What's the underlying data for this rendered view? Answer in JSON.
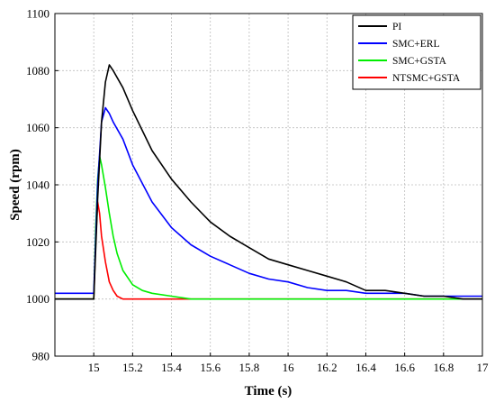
{
  "chart_data": {
    "type": "line",
    "title": "",
    "xlabel": "Time (s)",
    "ylabel": "Speed (rpm)",
    "xlim": [
      14.8,
      17.0
    ],
    "ylim": [
      980,
      1100
    ],
    "xticks": [
      "15",
      "15.2",
      "15.4",
      "15.6",
      "15.8",
      "16",
      "16.2",
      "16.4",
      "16.6",
      "16.8",
      "17"
    ],
    "yticks": [
      "980",
      "1000",
      "1020",
      "1040",
      "1060",
      "1080",
      "1100"
    ],
    "grid": true,
    "legend_position": "top-right",
    "series": [
      {
        "name": "PI",
        "color": "#000000",
        "x": [
          14.8,
          15.0,
          15.02,
          15.04,
          15.06,
          15.08,
          15.1,
          15.15,
          15.2,
          15.3,
          15.4,
          15.5,
          15.6,
          15.7,
          15.8,
          15.9,
          16.0,
          16.1,
          16.2,
          16.3,
          16.4,
          16.5,
          16.6,
          16.7,
          16.8,
          16.9,
          17.0
        ],
        "y": [
          1000,
          1000,
          1035,
          1062,
          1076,
          1082,
          1080,
          1074,
          1066,
          1052,
          1042,
          1034,
          1027,
          1022,
          1018,
          1014,
          1012,
          1010,
          1008,
          1006,
          1003,
          1003,
          1002,
          1001,
          1001,
          1000,
          1000
        ]
      },
      {
        "name": "SMC+ERL",
        "color": "#0000ff",
        "x": [
          14.8,
          15.0,
          15.02,
          15.04,
          15.06,
          15.08,
          15.1,
          15.15,
          15.2,
          15.3,
          15.4,
          15.5,
          15.6,
          15.7,
          15.8,
          15.9,
          16.0,
          16.1,
          16.2,
          16.3,
          16.4,
          16.5,
          16.6,
          16.7,
          16.8,
          16.9,
          17.0
        ],
        "y": [
          1002,
          1002,
          1040,
          1062,
          1067,
          1065,
          1062,
          1056,
          1047,
          1034,
          1025,
          1019,
          1015,
          1012,
          1009,
          1007,
          1006,
          1004,
          1003,
          1003,
          1002,
          1002,
          1002,
          1001,
          1001,
          1001,
          1001
        ]
      },
      {
        "name": "SMC+GSTA",
        "color": "#00ee00",
        "x": [
          14.8,
          15.0,
          15.01,
          15.02,
          15.03,
          15.04,
          15.06,
          15.08,
          15.1,
          15.12,
          15.15,
          15.2,
          15.25,
          15.3,
          15.4,
          15.5,
          15.6,
          15.8,
          16.0,
          16.2,
          16.4,
          16.6,
          16.8,
          17.0
        ],
        "y": [
          1000,
          1000,
          1025,
          1042,
          1050,
          1047,
          1039,
          1030,
          1022,
          1016,
          1010,
          1005,
          1003,
          1002,
          1001,
          1000,
          1000,
          1000,
          1000,
          1000,
          1000,
          1000,
          1000,
          1000
        ]
      },
      {
        "name": "NTSMC+GSTA",
        "color": "#ff0000",
        "x": [
          14.8,
          15.0,
          15.01,
          15.02,
          15.03,
          15.04,
          15.06,
          15.08,
          15.1,
          15.12,
          15.15,
          15.2,
          15.3,
          15.5,
          15.8,
          16.0,
          16.2,
          16.4,
          16.6,
          16.8,
          17.0
        ],
        "y": [
          1000,
          1000,
          1020,
          1034,
          1030,
          1022,
          1013,
          1006,
          1003,
          1001,
          1000,
          1000,
          1000,
          1000,
          1000,
          1000,
          1000,
          1000,
          1000,
          1000,
          1000
        ]
      }
    ]
  }
}
